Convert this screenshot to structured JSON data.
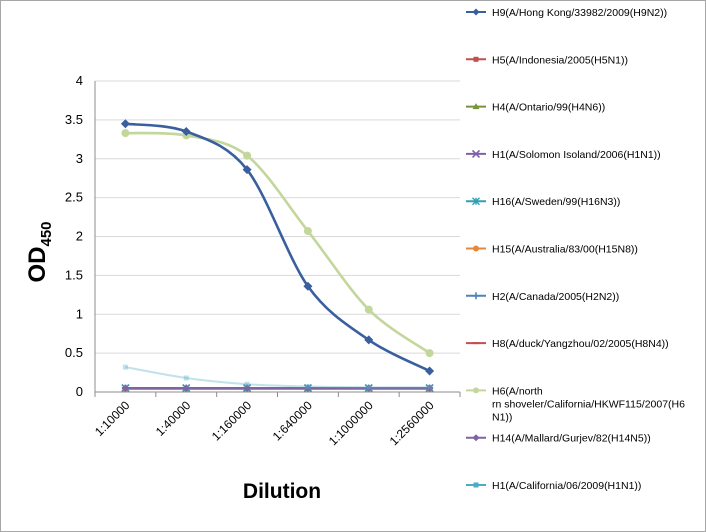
{
  "chart_data": {
    "type": "line",
    "ylabel_main": "OD",
    "ylabel_sub": "450",
    "xlabel": "Dilution",
    "ylim": [
      0,
      4
    ],
    "yticks": [
      "0",
      "0.5",
      "1",
      "1.5",
      "2",
      "2.5",
      "3",
      "3.5",
      "4"
    ],
    "categories": [
      "1:10000",
      "1:40000",
      "1:160000",
      "1:640000",
      "1:1000000",
      "1:2560000"
    ],
    "grid": "horizontal",
    "legend_position": "right",
    "series": [
      {
        "name": "H9(A/Hong Kong/33982/2009(H9N2))",
        "color": "#3a5f9f",
        "marker": "diamond",
        "values": [
          3.45,
          3.35,
          2.86,
          1.36,
          0.67,
          0.27
        ]
      },
      {
        "name": "H5(A/Indonesia/2005(H5N1))",
        "color": "#c0504d",
        "marker": "square",
        "values": [
          0.05,
          0.05,
          0.05,
          0.05,
          0.05,
          0.05
        ]
      },
      {
        "name": "H4(A/Ontario/99(H4N6))",
        "color": "#77933c",
        "marker": "triangle",
        "values": [
          0.05,
          0.05,
          0.05,
          0.05,
          0.05,
          0.05
        ]
      },
      {
        "name": "H1(A/Solomon Isoland/2006(H1N1))",
        "color": "#7f5fa8",
        "marker": "x",
        "values": [
          0.05,
          0.05,
          0.05,
          0.05,
          0.05,
          0.05
        ]
      },
      {
        "name": "H16(A/Sweden/99(H16N3))",
        "color": "#31a0b4",
        "marker": "star",
        "values": [
          0.05,
          0.05,
          0.05,
          0.05,
          0.05,
          0.05
        ]
      },
      {
        "name": "H15(A/Australia/83/00(H15N8))",
        "color": "#e8873a",
        "marker": "circle",
        "values": [
          0.04,
          0.04,
          0.04,
          0.04,
          0.04,
          0.04
        ]
      },
      {
        "name": "H2(A/Canada/2005(H2N2))",
        "color": "#4f81bd",
        "marker": "plus",
        "values": [
          0.05,
          0.05,
          0.05,
          0.05,
          0.05,
          0.05
        ]
      },
      {
        "name": "H8(A/duck/Yangzhou/02/2005(H8N4))",
        "color": "#c0504d",
        "marker": "dash",
        "values": [
          0.05,
          0.05,
          0.05,
          0.05,
          0.05,
          0.05
        ]
      },
      {
        "name": "H6(A/northern shoveler/California/HKWF115/2007(H6N1))",
        "color": "#c3d69b",
        "marker": "circle",
        "values": [
          3.33,
          3.3,
          3.04,
          2.07,
          1.06,
          0.5
        ]
      },
      {
        "name": "H14(A/Mallard/Gurjev/82(H14N5))",
        "color": "#8064a2",
        "marker": "diamond",
        "values": [
          0.05,
          0.05,
          0.05,
          0.05,
          0.05,
          0.05
        ]
      },
      {
        "name": "H1(A/California/06/2009(H1N1))",
        "color": "#4bacc6",
        "marker": "square",
        "values": [
          0.32,
          0.18,
          0.1,
          0.07,
          0.06,
          0.06
        ]
      }
    ]
  }
}
